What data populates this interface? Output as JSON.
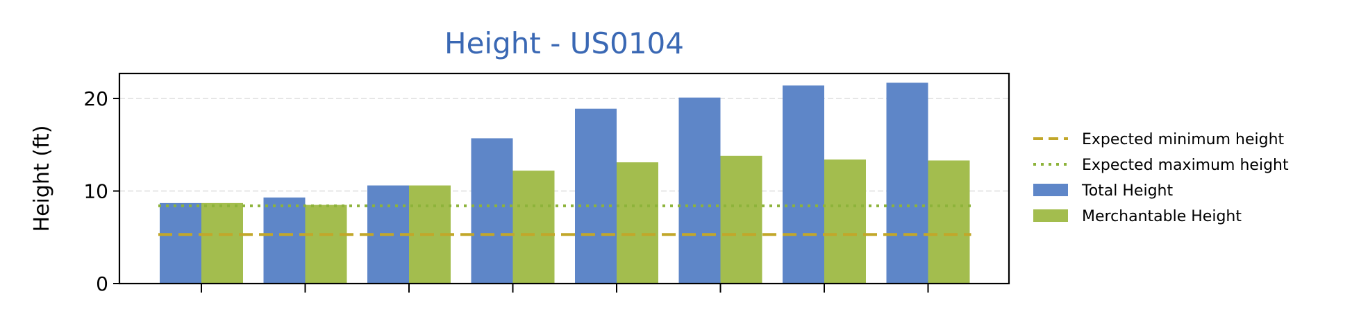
{
  "chart_data": {
    "type": "bar",
    "title": "Height - US0104",
    "xlabel": "",
    "ylabel": "Height (ft)",
    "ylim": [
      0,
      22.7
    ],
    "yticks": [
      0,
      10,
      20
    ],
    "grid": "horizontal",
    "legend_position": "right",
    "categories": [
      "",
      "",
      "",
      "",
      "",
      "",
      "",
      ""
    ],
    "series": [
      {
        "name": "Total Height",
        "color": "#5e86c8",
        "values": [
          8.7,
          9.3,
          10.6,
          15.7,
          18.9,
          20.1,
          21.4,
          21.7
        ]
      },
      {
        "name": "Merchantable Height",
        "color": "#a3bd4e",
        "values": [
          8.7,
          8.5,
          10.6,
          12.2,
          13.1,
          13.8,
          13.4,
          13.3
        ]
      }
    ],
    "reference_lines": [
      {
        "name": "Expected minimum height",
        "value": 5.3,
        "style": "dashed",
        "color": "#c2a72a"
      },
      {
        "name": "Expected maximum height",
        "value": 8.4,
        "style": "dotted",
        "color": "#8db33a"
      }
    ],
    "colors": {
      "title": "#3a68b4",
      "grid": "#e6e6e6",
      "axis": "#000000"
    }
  }
}
